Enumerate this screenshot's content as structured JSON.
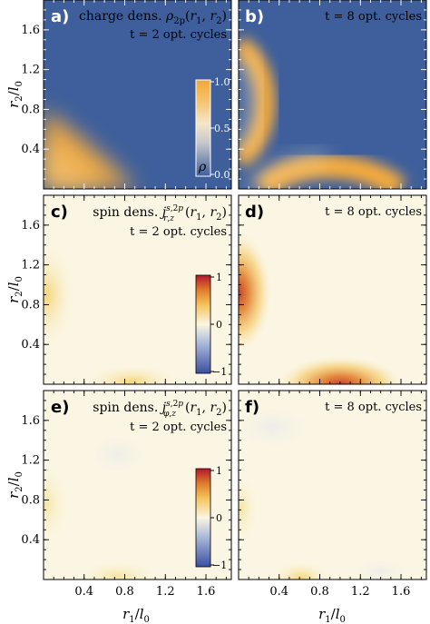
{
  "chart_data": [
    {
      "type": "heatmap",
      "panel_label": "a)",
      "title": "charge dens. ρ2p(r1, r2)",
      "subtitle": "t = 2 opt. cycles",
      "xlabel": "r1/l0",
      "ylabel": "r2/l0",
      "xlim": [
        0,
        1.85
      ],
      "ylim": [
        0,
        1.9
      ],
      "xticks": [
        "0.4",
        "0.8",
        "1.2",
        "1.6"
      ],
      "yticks": [
        "0.4",
        "0.8",
        "1.2",
        "1.6"
      ],
      "colorbar": {
        "label": "ρ",
        "ticks": [
          "1.0",
          "0.5",
          "0.0"
        ],
        "range": [
          0,
          1
        ]
      },
      "features": [
        {
          "shape": "band along r1 + r2 ≈ 0.5",
          "peak": 0.95
        }
      ]
    },
    {
      "type": "heatmap",
      "panel_label": "b)",
      "subtitle": "t = 8 opt. cycles",
      "xlabel": "r1/l0",
      "xlim": [
        0,
        1.85
      ],
      "ylim": [
        0,
        1.9
      ],
      "xticks": [
        "0.4",
        "0.8",
        "1.2",
        "1.6"
      ],
      "features": [
        {
          "shape": "arc near r1 ≈ 0.15, r2 ≈ 1.0",
          "peak": 1.0
        },
        {
          "shape": "arc near r1 ≈ 1.0, r2 ≈ 0.15",
          "peak": 1.0
        }
      ]
    },
    {
      "type": "heatmap",
      "panel_label": "c)",
      "title": "spin dens. j^{s,2p}_{r,z}(r1, r2)",
      "subtitle": "t = 2 opt. cycles",
      "ylabel": "r2/l0",
      "xlim": [
        0,
        1.85
      ],
      "ylim": [
        0,
        1.9
      ],
      "yticks": [
        "0.4",
        "0.8",
        "1.2",
        "1.6"
      ],
      "colorbar": {
        "ticks": [
          "1",
          "0",
          "−1"
        ],
        "range": [
          -1,
          1
        ]
      },
      "features": [
        {
          "shape": "weak blob near r1 ≈ 0.1, r2 ≈ 1.0",
          "peak": 0.2
        },
        {
          "shape": "weak blob near r1 ≈ 1.0, r2 ≈ 0.05",
          "peak": 0.2
        }
      ]
    },
    {
      "type": "heatmap",
      "panel_label": "d)",
      "subtitle": "t = 8 opt. cycles",
      "xlim": [
        0,
        1.85
      ],
      "ylim": [
        0,
        1.9
      ],
      "features": [
        {
          "shape": "blob near r1 ≈ 0.05, r2 ≈ 1.05",
          "peak": 0.75
        },
        {
          "shape": "blob near r1 ≈ 1.05, r2 ≈ 0.05",
          "peak": 0.75
        }
      ]
    },
    {
      "type": "heatmap",
      "panel_label": "e)",
      "title": "spin dens. j^{s,2p}_{φ,z}(r1, r2)",
      "subtitle": "t = 2 opt. cycles",
      "xlabel": "r1/l0",
      "ylabel": "r2/l0",
      "xlim": [
        0,
        1.85
      ],
      "ylim": [
        0,
        1.9
      ],
      "xticks": [
        "0.4",
        "0.8",
        "1.2",
        "1.6"
      ],
      "yticks": [
        "0.4",
        "0.8",
        "1.2",
        "1.6"
      ],
      "colorbar": {
        "ticks": [
          "1",
          "0",
          "−1"
        ],
        "range": [
          -1,
          1
        ]
      },
      "features": [
        {
          "shape": "very weak blob near r1 ≈ 0.1, r2 ≈ 0.9",
          "peak": 0.07
        },
        {
          "shape": "very weak blob near r1 ≈ 0.9, r2 ≈ 0.1",
          "peak": 0.07
        }
      ]
    },
    {
      "type": "heatmap",
      "panel_label": "f)",
      "subtitle": "t = 8 opt. cycles",
      "xlabel": "r1/l0",
      "xlim": [
        0,
        1.85
      ],
      "ylim": [
        0,
        1.9
      ],
      "xticks": [
        "0.4",
        "0.8",
        "1.2",
        "1.6"
      ],
      "features": [
        {
          "shape": "weak blob near r1 ≈ 0.75, r2 ≈ 0.05",
          "peak": 0.12
        },
        {
          "shape": "weak blob near r1 ≈ 0.05, r2 ≈ 0.75",
          "peak": 0.1
        }
      ]
    }
  ],
  "colors": {
    "charge_low": "#3e5f9c",
    "charge_high": "#f3a83a",
    "spin_neg": "#3a4fa0",
    "spin_zero": "#fbf6e3",
    "spin_pos": "#b2182b"
  }
}
